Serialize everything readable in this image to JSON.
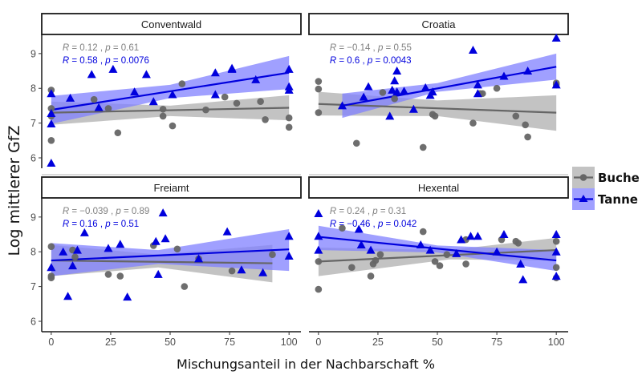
{
  "chart_data": {
    "type": "scatter",
    "xlabel": "Mischungsanteil in der Nachbarschaft %",
    "ylabel": "Log mittlerer GfZ",
    "xlim": [
      -4,
      105
    ],
    "ylim": [
      5.7,
      9.55
    ],
    "x_ticks": [
      0,
      25,
      50,
      75,
      100
    ],
    "y_ticks": [
      6,
      7,
      8,
      9
    ],
    "grid": false,
    "legend": {
      "position": "right",
      "entries": [
        {
          "name": "Buche",
          "color": "#666666",
          "band": "#bdbdbd",
          "marker": "circle"
        },
        {
          "name": "Tanne",
          "color": "#0000dd",
          "band": "#8080ff",
          "marker": "triangle"
        }
      ]
    },
    "panels": [
      {
        "title": "Conventwald",
        "stats": [
          {
            "series": "Buche",
            "R": "0.12",
            "p": "0.61"
          },
          {
            "series": "Tanne",
            "R": "0.58",
            "p": "0.0076"
          }
        ],
        "series": [
          {
            "name": "Buche",
            "points": [
              [
                0,
                7.95
              ],
              [
                0,
                7.42
              ],
              [
                0,
                7.2
              ],
              [
                0,
                6.5
              ],
              [
                18,
                7.68
              ],
              [
                24,
                7.42
              ],
              [
                28,
                6.72
              ],
              [
                47,
                7.4
              ],
              [
                47,
                7.2
              ],
              [
                51,
                6.92
              ],
              [
                55,
                8.13
              ],
              [
                65,
                7.38
              ],
              [
                73,
                7.75
              ],
              [
                78,
                7.57
              ],
              [
                88,
                7.62
              ],
              [
                90,
                7.1
              ],
              [
                100,
                7.15
              ],
              [
                100,
                6.88
              ]
            ],
            "fit": {
              "x": [
                0,
                100
              ],
              "y": [
                7.3,
                7.44
              ]
            },
            "band": {
              "x": [
                0,
                50,
                100
              ],
              "lower": [
                6.95,
                7.2,
                7.08
              ],
              "upper": [
                7.62,
                7.5,
                7.8
              ]
            }
          },
          {
            "name": "Tanne",
            "points": [
              [
                0,
                7.85
              ],
              [
                0,
                7.28
              ],
              [
                0,
                6.98
              ],
              [
                0,
                5.85
              ],
              [
                8,
                7.72
              ],
              [
                17,
                8.4
              ],
              [
                20,
                7.45
              ],
              [
                26,
                8.55
              ],
              [
                35,
                7.9
              ],
              [
                40,
                8.4
              ],
              [
                43,
                7.62
              ],
              [
                51,
                7.82
              ],
              [
                69,
                8.45
              ],
              [
                69,
                7.82
              ],
              [
                76,
                8.58
              ],
              [
                76,
                8.55
              ],
              [
                86,
                8.25
              ],
              [
                100,
                8.55
              ],
              [
                100,
                8.05
              ],
              [
                100,
                7.95
              ]
            ],
            "fit": {
              "x": [
                0,
                100
              ],
              "y": [
                7.38,
                8.45
              ]
            },
            "band": {
              "x": [
                0,
                50,
                100
              ],
              "lower": [
                6.98,
                7.72,
                7.98
              ],
              "upper": [
                7.78,
                8.1,
                8.93
              ]
            }
          }
        ]
      },
      {
        "title": "Croatia",
        "stats": [
          {
            "series": "Buche",
            "R": "−0.14",
            "p": "0.55"
          },
          {
            "series": "Tanne",
            "R": "0.6",
            "p": "0.0043"
          }
        ],
        "series": [
          {
            "name": "Buche",
            "points": [
              [
                0,
                8.2
              ],
              [
                0,
                7.98
              ],
              [
                0,
                7.3
              ],
              [
                16,
                6.42
              ],
              [
                27,
                7.88
              ],
              [
                32,
                7.7
              ],
              [
                44,
                6.3
              ],
              [
                48,
                7.25
              ],
              [
                49,
                7.2
              ],
              [
                65,
                7.0
              ],
              [
                68,
                7.85
              ],
              [
                69,
                7.85
              ],
              [
                75,
                8.0
              ],
              [
                83,
                7.2
              ],
              [
                87,
                6.95
              ],
              [
                88,
                6.6
              ],
              [
                100,
                8.15
              ],
              [
                100,
                8.1
              ]
            ],
            "fit": {
              "x": [
                0,
                100
              ],
              "y": [
                7.55,
                7.3
              ]
            },
            "band": {
              "x": [
                0,
                50,
                100
              ],
              "lower": [
                7.22,
                7.2,
                6.78
              ],
              "upper": [
                7.9,
                7.65,
                7.8
              ]
            }
          },
          {
            "name": "Tanne",
            "points": [
              [
                10,
                7.5
              ],
              [
                19,
                7.75
              ],
              [
                21,
                8.05
              ],
              [
                30,
                7.2
              ],
              [
                31,
                7.95
              ],
              [
                32,
                8.22
              ],
              [
                33,
                8.5
              ],
              [
                33,
                7.9
              ],
              [
                36,
                7.92
              ],
              [
                40,
                7.4
              ],
              [
                45,
                8.02
              ],
              [
                47,
                7.8
              ],
              [
                48,
                7.9
              ],
              [
                65,
                9.1
              ],
              [
                67,
                7.85
              ],
              [
                67,
                8.1
              ],
              [
                78,
                8.35
              ],
              [
                88,
                8.5
              ],
              [
                100,
                9.45
              ],
              [
                100,
                8.1
              ]
            ],
            "fit": {
              "x": [
                10,
                100
              ],
              "y": [
                7.5,
                8.62
              ]
            },
            "band": {
              "x": [
                10,
                50,
                100
              ],
              "lower": [
                7.15,
                7.9,
                8.25
              ],
              "upper": [
                7.85,
                8.15,
                9.0
              ]
            }
          }
        ]
      },
      {
        "title": "Freiamt",
        "stats": [
          {
            "series": "Buche",
            "R": "−0.039",
            "p": "0.89"
          },
          {
            "series": "Tanne",
            "R": "0.16",
            "p": "0.51"
          }
        ],
        "series": [
          {
            "name": "Buche",
            "points": [
              [
                0,
                8.15
              ],
              [
                0,
                7.3
              ],
              [
                0,
                7.25
              ],
              [
                9,
                8.05
              ],
              [
                10,
                7.85
              ],
              [
                24,
                7.35
              ],
              [
                29,
                7.3
              ],
              [
                43,
                8.18
              ],
              [
                53,
                8.08
              ],
              [
                56,
                7.0
              ],
              [
                62,
                7.8
              ],
              [
                76,
                7.45
              ],
              [
                93,
                7.92
              ]
            ],
            "fit": {
              "x": [
                0,
                93
              ],
              "y": [
                7.75,
                7.67
              ]
            },
            "band": {
              "x": [
                0,
                45,
                93
              ],
              "lower": [
                7.3,
                7.55,
                7.12
              ],
              "upper": [
                8.2,
                7.92,
                8.2
              ]
            }
          },
          {
            "name": "Tanne",
            "points": [
              [
                0,
                7.55
              ],
              [
                5,
                8.0
              ],
              [
                7,
                6.72
              ],
              [
                9,
                7.6
              ],
              [
                11,
                8.05
              ],
              [
                14,
                8.55
              ],
              [
                24,
                8.1
              ],
              [
                29,
                8.22
              ],
              [
                32,
                6.7
              ],
              [
                44,
                8.3
              ],
              [
                45,
                7.35
              ],
              [
                47,
                9.12
              ],
              [
                48,
                8.38
              ],
              [
                62,
                7.8
              ],
              [
                74,
                8.58
              ],
              [
                80,
                7.48
              ],
              [
                89,
                7.4
              ],
              [
                100,
                8.45
              ],
              [
                100,
                7.88
              ]
            ],
            "fit": {
              "x": [
                0,
                100
              ],
              "y": [
                7.75,
                8.07
              ]
            },
            "band": {
              "x": [
                0,
                45,
                100
              ],
              "lower": [
                7.3,
                7.65,
                7.45
              ],
              "upper": [
                8.25,
                8.05,
                8.65
              ]
            }
          }
        ]
      },
      {
        "title": "Hexental",
        "stats": [
          {
            "series": "Buche",
            "R": "0.24",
            "p": "0.31"
          },
          {
            "series": "Tanne",
            "R": "−0.46",
            "p": "0.042"
          }
        ],
        "series": [
          {
            "name": "Buche",
            "points": [
              [
                0,
                7.72
              ],
              [
                0,
                6.92
              ],
              [
                10,
                8.68
              ],
              [
                14,
                7.55
              ],
              [
                22,
                7.3
              ],
              [
                23,
                7.65
              ],
              [
                24,
                7.75
              ],
              [
                26,
                7.92
              ],
              [
                44,
                8.58
              ],
              [
                49,
                7.72
              ],
              [
                51,
                7.6
              ],
              [
                54,
                7.92
              ],
              [
                62,
                8.35
              ],
              [
                62,
                7.65
              ],
              [
                77,
                8.35
              ],
              [
                83,
                8.3
              ],
              [
                84,
                8.25
              ],
              [
                100,
                8.3
              ],
              [
                100,
                7.55
              ],
              [
                100,
                7.25
              ]
            ],
            "fit": {
              "x": [
                0,
                100
              ],
              "y": [
                7.72,
                8.05
              ]
            },
            "band": {
              "x": [
                0,
                55,
                100
              ],
              "lower": [
                7.3,
                7.78,
                7.75
              ],
              "upper": [
                8.12,
                8.05,
                8.4
              ]
            }
          },
          {
            "name": "Tanne",
            "points": [
              [
                0,
                9.1
              ],
              [
                0,
                8.45
              ],
              [
                0,
                8.05
              ],
              [
                17,
                8.65
              ],
              [
                18,
                8.2
              ],
              [
                22,
                8.05
              ],
              [
                43,
                8.2
              ],
              [
                47,
                8.05
              ],
              [
                58,
                7.95
              ],
              [
                60,
                8.35
              ],
              [
                64,
                8.45
              ],
              [
                67,
                8.45
              ],
              [
                75,
                8.0
              ],
              [
                78,
                8.5
              ],
              [
                85,
                7.65
              ],
              [
                86,
                7.2
              ],
              [
                100,
                8.5
              ],
              [
                100,
                8.0
              ],
              [
                100,
                7.3
              ]
            ],
            "fit": {
              "x": [
                0,
                100
              ],
              "y": [
                8.43,
                7.75
              ]
            },
            "band": {
              "x": [
                0,
                50,
                100
              ],
              "lower": [
                8.05,
                7.98,
                7.45
              ],
              "upper": [
                8.75,
                8.18,
                8.05
              ]
            }
          }
        ]
      }
    ]
  }
}
